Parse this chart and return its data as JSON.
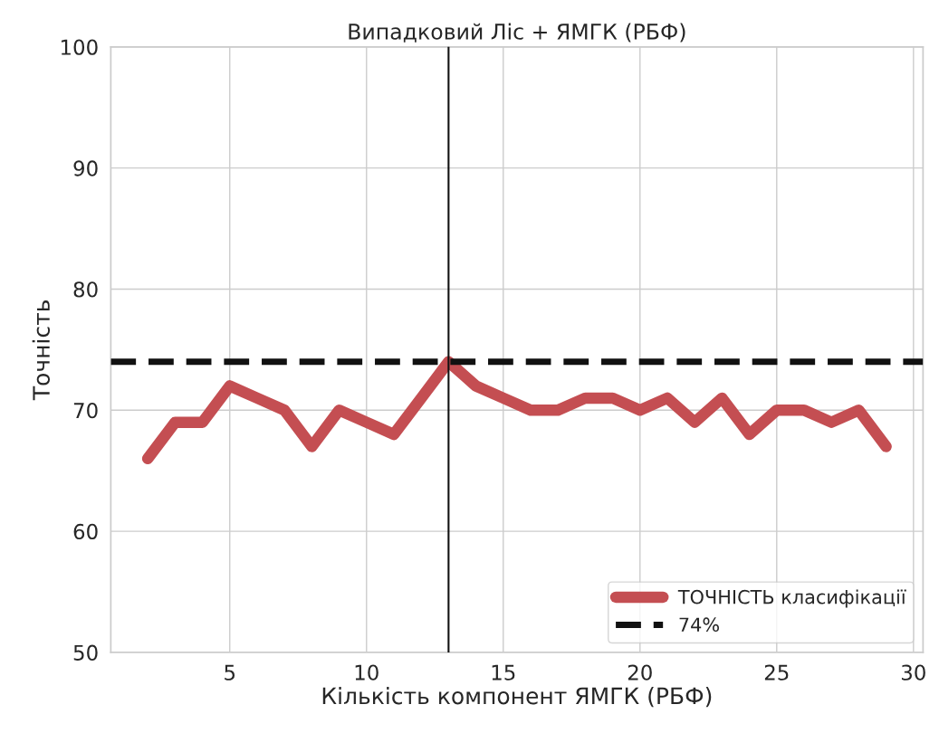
{
  "chart_data": {
    "type": "line",
    "title": "Випадковий Ліс + ЯМГК (РБФ)",
    "xlabel": "Кількість компонент ЯМГК (РБФ)",
    "ylabel": "Точність",
    "x": [
      2,
      3,
      4,
      5,
      6,
      7,
      8,
      9,
      10,
      11,
      12,
      13,
      14,
      15,
      16,
      17,
      18,
      19,
      20,
      21,
      22,
      23,
      24,
      25,
      26,
      27,
      28,
      29
    ],
    "series": [
      {
        "name": "ТОЧНІСТЬ класифікації",
        "color": "#c44e52",
        "values": [
          66,
          69,
          69,
          72,
          71,
          70,
          67,
          70,
          69,
          68,
          71,
          74,
          72,
          71,
          70,
          70,
          71,
          71,
          70,
          71,
          69,
          71,
          68,
          70,
          70,
          69,
          70,
          67
        ]
      }
    ],
    "ref_lines": [
      {
        "axis": "y",
        "value": 74,
        "label": "74%",
        "color": "#111111",
        "line_style": "dashed"
      },
      {
        "axis": "x",
        "value": 13,
        "color": "#111111",
        "line_style": "solid"
      }
    ],
    "xlim": [
      0.65,
      30.35
    ],
    "xticks": [
      5,
      10,
      15,
      20,
      25,
      30
    ],
    "ylim": [
      50,
      100
    ],
    "yticks": [
      50,
      60,
      70,
      80,
      90,
      100
    ],
    "grid": true,
    "legend": "bottom right",
    "line_style": "solid"
  }
}
